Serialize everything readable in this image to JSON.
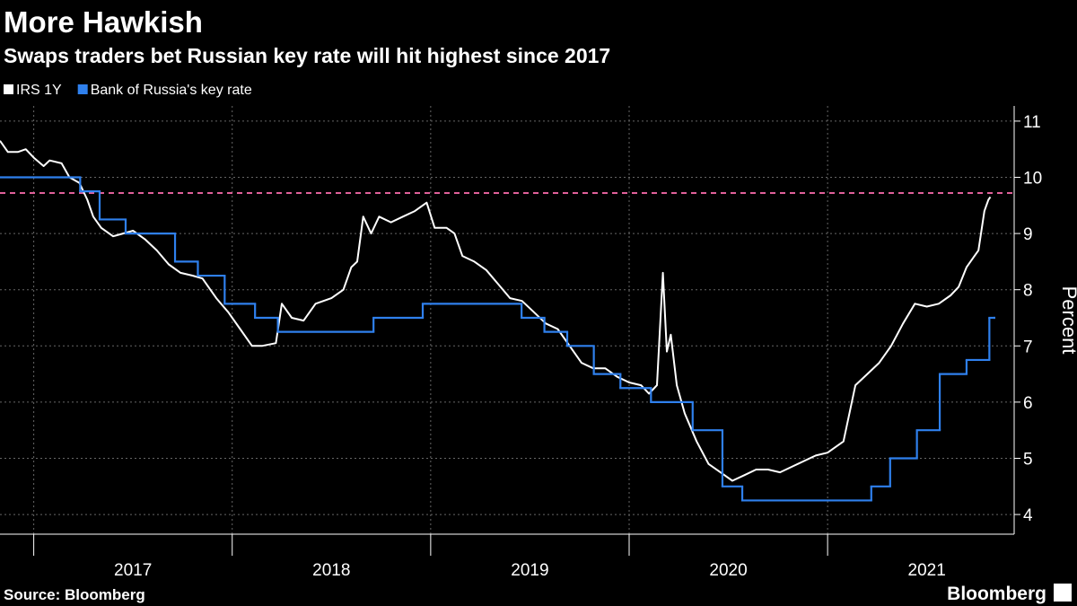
{
  "chart_data": {
    "type": "line",
    "title": "More Hawkish",
    "subtitle": "Swaps traders bet Russian key rate will hit highest since 2017",
    "y_axis_label": "Percent",
    "source": "Source: Bloomberg",
    "brand": "Bloomberg",
    "xlim": [
      2016.83,
      2021.94
    ],
    "xticks": [
      {
        "value": 2017.5,
        "label": "2017"
      },
      {
        "value": 2018.5,
        "label": "2018"
      },
      {
        "value": 2019.5,
        "label": "2019"
      },
      {
        "value": 2020.5,
        "label": "2020"
      },
      {
        "value": 2021.5,
        "label": "2021"
      }
    ],
    "xgrid": [
      2017,
      2018,
      2019,
      2020,
      2021
    ],
    "ylim": [
      3.65,
      11.27
    ],
    "yticks": [
      4,
      5,
      6,
      7,
      8,
      9,
      10,
      11
    ],
    "grid": true,
    "legend": "top-left",
    "reference_lines": [
      {
        "value": 9.72,
        "color": "#e0609a",
        "dash": true
      }
    ],
    "series": [
      {
        "name": "IRS 1Y",
        "color": "#ffffff",
        "step": false,
        "x": [
          2016.83,
          2016.87,
          2016.92,
          2016.96,
          2017.0,
          2017.05,
          2017.08,
          2017.14,
          2017.18,
          2017.23,
          2017.27,
          2017.3,
          2017.34,
          2017.4,
          2017.45,
          2017.5,
          2017.56,
          2017.62,
          2017.68,
          2017.74,
          2017.8,
          2017.85,
          2017.92,
          2017.98,
          2018.04,
          2018.1,
          2018.15,
          2018.22,
          2018.25,
          2018.3,
          2018.36,
          2018.42,
          2018.5,
          2018.56,
          2018.6,
          2018.63,
          2018.66,
          2018.7,
          2018.74,
          2018.8,
          2018.86,
          2018.92,
          2018.98,
          2019.02,
          2019.08,
          2019.12,
          2019.16,
          2019.22,
          2019.28,
          2019.34,
          2019.4,
          2019.46,
          2019.52,
          2019.58,
          2019.64,
          2019.7,
          2019.76,
          2019.82,
          2019.88,
          2019.94,
          2020.0,
          2020.06,
          2020.1,
          2020.14,
          2020.17,
          2020.19,
          2020.21,
          2020.24,
          2020.28,
          2020.34,
          2020.4,
          2020.46,
          2020.52,
          2020.58,
          2020.64,
          2020.7,
          2020.76,
          2020.82,
          2020.88,
          2020.94,
          2021.0,
          2021.08,
          2021.14,
          2021.2,
          2021.26,
          2021.32,
          2021.38,
          2021.44,
          2021.5,
          2021.56,
          2021.62,
          2021.66,
          2021.7,
          2021.74,
          2021.76,
          2021.79,
          2021.81,
          2021.82
        ],
        "values": [
          10.65,
          10.45,
          10.45,
          10.5,
          10.35,
          10.2,
          10.3,
          10.25,
          10.0,
          9.9,
          9.6,
          9.3,
          9.1,
          8.95,
          9.0,
          9.05,
          8.9,
          8.7,
          8.45,
          8.3,
          8.25,
          8.2,
          7.85,
          7.6,
          7.3,
          7.0,
          7.0,
          7.05,
          7.75,
          7.5,
          7.45,
          7.75,
          7.85,
          8.0,
          8.4,
          8.5,
          9.3,
          9.0,
          9.3,
          9.2,
          9.3,
          9.4,
          9.55,
          9.1,
          9.1,
          9.0,
          8.6,
          8.5,
          8.35,
          8.1,
          7.85,
          7.8,
          7.6,
          7.4,
          7.3,
          7.0,
          6.7,
          6.6,
          6.6,
          6.45,
          6.35,
          6.3,
          6.15,
          6.3,
          8.3,
          6.9,
          7.2,
          6.3,
          5.8,
          5.3,
          4.9,
          4.75,
          4.6,
          4.7,
          4.8,
          4.8,
          4.75,
          4.85,
          4.95,
          5.05,
          5.1,
          5.3,
          6.3,
          6.5,
          6.7,
          7.0,
          7.4,
          7.75,
          7.7,
          7.75,
          7.9,
          8.05,
          8.4,
          8.6,
          8.7,
          9.4,
          9.6,
          9.65
        ]
      },
      {
        "name": "Bank of Russia's key rate",
        "color": "#2f80ed",
        "step": true,
        "x": [
          2016.83,
          2017.234,
          2017.332,
          2017.463,
          2017.712,
          2017.827,
          2017.962,
          2018.115,
          2018.23,
          2018.712,
          2018.96,
          2019.458,
          2019.573,
          2019.688,
          2019.822,
          2019.956,
          2020.11,
          2020.32,
          2020.47,
          2020.57,
          2021.22,
          2021.315,
          2021.45,
          2021.565,
          2021.7,
          2021.815,
          2021.84
        ],
        "values": [
          10.0,
          9.75,
          9.25,
          9.0,
          8.5,
          8.25,
          7.75,
          7.5,
          7.25,
          7.5,
          7.75,
          7.5,
          7.25,
          7.0,
          6.5,
          6.25,
          6.0,
          5.5,
          4.5,
          4.25,
          4.5,
          5.0,
          5.5,
          6.5,
          6.75,
          7.5,
          7.5
        ]
      }
    ]
  }
}
